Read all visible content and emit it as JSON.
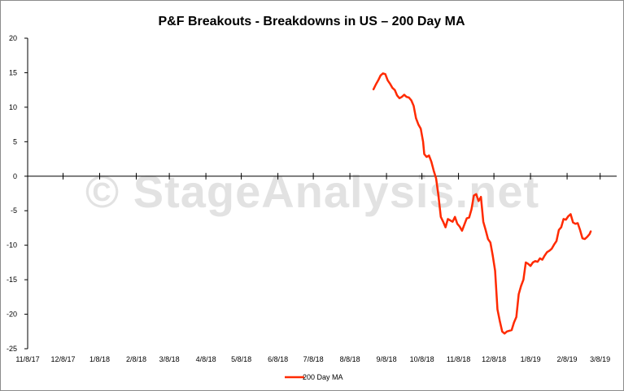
{
  "colors": {
    "series": "#ff2a00",
    "axis": "#000000",
    "watermark": "#d9d9d9"
  },
  "watermark_text": "© StageAnalysis.net",
  "chart_data": {
    "type": "line",
    "title": "P&F Breakouts - Breakdowns in US – 200 Day MA",
    "xlabel": "",
    "ylabel": "",
    "ylim": [
      -25,
      20
    ],
    "yticks": [
      20,
      15,
      10,
      5,
      0,
      -5,
      -10,
      -15,
      -20,
      -25
    ],
    "xlim": [
      "2017-11-08",
      "2019-03-22"
    ],
    "xticks": [
      {
        "date": "2017-11-08",
        "label": "11/8/17"
      },
      {
        "date": "2017-12-08",
        "label": "12/8/17"
      },
      {
        "date": "2018-01-08",
        "label": "1/8/18"
      },
      {
        "date": "2018-02-08",
        "label": "2/8/18"
      },
      {
        "date": "2018-03-08",
        "label": "3/8/18"
      },
      {
        "date": "2018-04-08",
        "label": "4/8/18"
      },
      {
        "date": "2018-05-08",
        "label": "5/8/18"
      },
      {
        "date": "2018-06-08",
        "label": "6/8/18"
      },
      {
        "date": "2018-07-08",
        "label": "7/8/18"
      },
      {
        "date": "2018-08-08",
        "label": "8/8/18"
      },
      {
        "date": "2018-09-08",
        "label": "9/8/18"
      },
      {
        "date": "2018-10-08",
        "label": "10/8/18"
      },
      {
        "date": "2018-11-08",
        "label": "11/8/18"
      },
      {
        "date": "2018-12-08",
        "label": "12/8/18"
      },
      {
        "date": "2019-01-08",
        "label": "1/8/19"
      },
      {
        "date": "2019-02-08",
        "label": "2/8/19"
      },
      {
        "date": "2019-03-08",
        "label": "3/8/19"
      }
    ],
    "legend": "bottom",
    "series": [
      {
        "name": "200 Day MA",
        "points": [
          [
            "2018-08-28",
            12.6
          ],
          [
            "2018-08-30",
            13.3
          ],
          [
            "2018-09-01",
            13.9
          ],
          [
            "2018-09-03",
            14.6
          ],
          [
            "2018-09-05",
            14.9
          ],
          [
            "2018-09-07",
            14.8
          ],
          [
            "2018-09-09",
            13.9
          ],
          [
            "2018-09-11",
            13.4
          ],
          [
            "2018-09-13",
            12.8
          ],
          [
            "2018-09-15",
            12.5
          ],
          [
            "2018-09-17",
            11.7
          ],
          [
            "2018-09-19",
            11.3
          ],
          [
            "2018-09-21",
            11.5
          ],
          [
            "2018-09-23",
            11.8
          ],
          [
            "2018-09-25",
            11.5
          ],
          [
            "2018-09-27",
            11.4
          ],
          [
            "2018-09-29",
            11.0
          ],
          [
            "2018-10-01",
            10.2
          ],
          [
            "2018-10-03",
            8.4
          ],
          [
            "2018-10-05",
            7.5
          ],
          [
            "2018-10-07",
            6.9
          ],
          [
            "2018-10-09",
            5.0
          ],
          [
            "2018-10-10",
            3.2
          ],
          [
            "2018-10-12",
            2.8
          ],
          [
            "2018-10-14",
            3.0
          ],
          [
            "2018-10-16",
            2.1
          ],
          [
            "2018-10-18",
            0.8
          ],
          [
            "2018-10-20",
            -0.3
          ],
          [
            "2018-10-22",
            -2.8
          ],
          [
            "2018-10-24",
            -5.9
          ],
          [
            "2018-10-26",
            -6.6
          ],
          [
            "2018-10-28",
            -7.4
          ],
          [
            "2018-10-30",
            -6.2
          ],
          [
            "2018-11-01",
            -6.4
          ],
          [
            "2018-11-03",
            -6.6
          ],
          [
            "2018-11-05",
            -5.9
          ],
          [
            "2018-11-07",
            -6.9
          ],
          [
            "2018-11-09",
            -7.3
          ],
          [
            "2018-11-11",
            -7.9
          ],
          [
            "2018-11-13",
            -7.0
          ],
          [
            "2018-11-15",
            -6.1
          ],
          [
            "2018-11-17",
            -6.0
          ],
          [
            "2018-11-19",
            -4.8
          ],
          [
            "2018-11-21",
            -2.8
          ],
          [
            "2018-11-23",
            -2.6
          ],
          [
            "2018-11-25",
            -3.6
          ],
          [
            "2018-11-27",
            -3.0
          ],
          [
            "2018-11-29",
            -6.6
          ],
          [
            "2018-12-01",
            -7.8
          ],
          [
            "2018-12-03",
            -9.1
          ],
          [
            "2018-12-05",
            -9.6
          ],
          [
            "2018-12-07",
            -11.5
          ],
          [
            "2018-12-09",
            -13.7
          ],
          [
            "2018-12-11",
            -19.3
          ],
          [
            "2018-12-13",
            -21.0
          ],
          [
            "2018-12-15",
            -22.5
          ],
          [
            "2018-12-17",
            -22.8
          ],
          [
            "2018-12-19",
            -22.5
          ],
          [
            "2018-12-23",
            -22.3
          ],
          [
            "2018-12-25",
            -21.2
          ],
          [
            "2018-12-27",
            -20.4
          ],
          [
            "2018-12-29",
            -17.1
          ],
          [
            "2018-12-31",
            -15.9
          ],
          [
            "2019-01-02",
            -15.0
          ],
          [
            "2019-01-04",
            -12.5
          ],
          [
            "2019-01-06",
            -12.7
          ],
          [
            "2019-01-08",
            -13.0
          ],
          [
            "2019-01-10",
            -12.5
          ],
          [
            "2019-01-12",
            -12.3
          ],
          [
            "2019-01-14",
            -12.4
          ],
          [
            "2019-01-16",
            -11.9
          ],
          [
            "2019-01-18",
            -12.1
          ],
          [
            "2019-01-20",
            -11.5
          ],
          [
            "2019-01-22",
            -11.0
          ],
          [
            "2019-01-24",
            -10.8
          ],
          [
            "2019-01-26",
            -10.5
          ],
          [
            "2019-01-28",
            -9.9
          ],
          [
            "2019-01-30",
            -9.4
          ],
          [
            "2019-02-01",
            -7.8
          ],
          [
            "2019-02-03",
            -7.4
          ],
          [
            "2019-02-05",
            -6.2
          ],
          [
            "2019-02-07",
            -6.3
          ],
          [
            "2019-02-09",
            -5.8
          ],
          [
            "2019-02-11",
            -5.5
          ],
          [
            "2019-02-13",
            -6.7
          ],
          [
            "2019-02-15",
            -6.9
          ],
          [
            "2019-02-17",
            -6.8
          ],
          [
            "2019-02-19",
            -7.8
          ],
          [
            "2019-02-21",
            -9.0
          ],
          [
            "2019-02-23",
            -9.1
          ],
          [
            "2019-02-25",
            -8.8
          ],
          [
            "2019-02-27",
            -8.4
          ],
          [
            "2019-02-28",
            -8.0
          ]
        ]
      }
    ]
  }
}
